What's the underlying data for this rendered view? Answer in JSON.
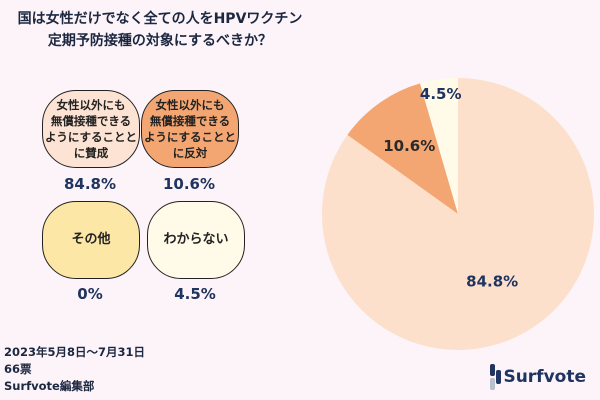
{
  "title_lines": [
    "国は女性だけでなく全ての人をHPVワクチン",
    "定期予防接種の対象にするべきか？"
  ],
  "chart_data": {
    "type": "pie",
    "categories": [
      "女性以外にも無償接種できるようにすることに賛成",
      "女性以外にも無償接種できるようにすることに反対",
      "その他",
      "わからない"
    ],
    "values": [
      84.8,
      10.6,
      0,
      4.5
    ],
    "labels": [
      "84.8%",
      "10.6%",
      "0%",
      "4.5%"
    ],
    "colors": [
      "#fde0cc",
      "#f3a672",
      "#fde7a6",
      "#fffbe8"
    ],
    "start": "top",
    "direction": "clockwise"
  },
  "options": [
    {
      "label": "女性以外にも無償接種できるようにすることに賛成",
      "lines": [
        "女性以外にも",
        "無償接種できる",
        "ようにすることと",
        "に賛成"
      ],
      "pct": "84.8%"
    },
    {
      "label": "女性以外にも無償接種できるようにすることに反対",
      "lines": [
        "女性以外にも",
        "無償接種できる",
        "ようにすることと",
        "に反対"
      ],
      "pct": "10.6%"
    },
    {
      "label": "その他",
      "lines": [
        "その他"
      ],
      "pct": "0%"
    },
    {
      "label": "わからない",
      "lines": [
        "わからない"
      ],
      "pct": "4.5%"
    }
  ],
  "footer": {
    "period": "2023年5月8日〜7月31日",
    "votes": "66票",
    "author": "Surfvote編集部"
  },
  "logo": {
    "text": "Surfvote"
  }
}
